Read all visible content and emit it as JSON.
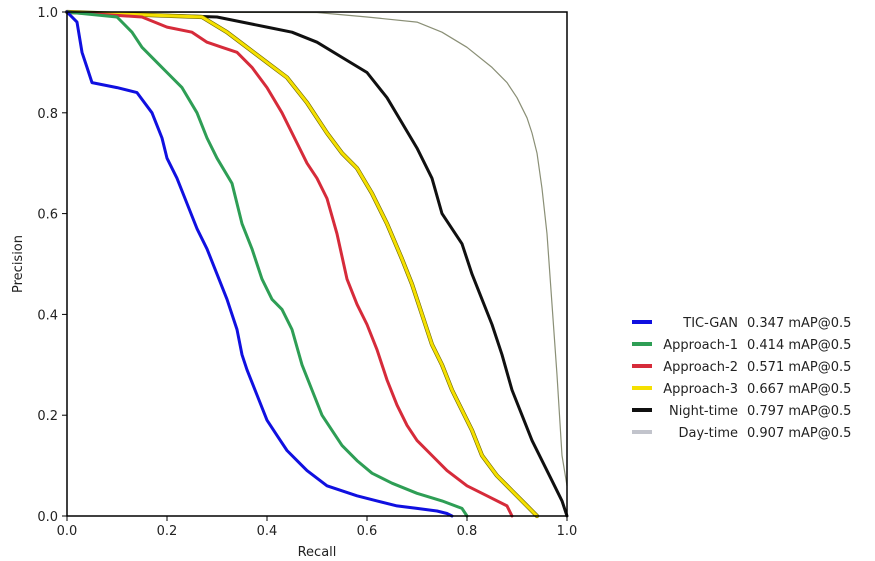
{
  "chart_data": {
    "type": "line",
    "xlabel": "Recall",
    "ylabel": "Precision",
    "xlim": [
      0.0,
      1.0
    ],
    "ylim": [
      0.0,
      1.0
    ],
    "x_ticks": [
      "0.0",
      "0.2",
      "0.4",
      "0.6",
      "0.8",
      "1.0"
    ],
    "y_ticks": [
      "0.0",
      "0.2",
      "0.4",
      "0.6",
      "0.8",
      "1.0"
    ],
    "grid": false,
    "legend_position": "right",
    "series": [
      {
        "name": "TIC-GAN",
        "score": "0.347 mAP@0.5",
        "color": "#1010e0",
        "x": [
          0.0,
          0.02,
          0.03,
          0.04,
          0.05,
          0.1,
          0.14,
          0.17,
          0.19,
          0.2,
          0.22,
          0.24,
          0.26,
          0.28,
          0.3,
          0.32,
          0.34,
          0.35,
          0.36,
          0.38,
          0.4,
          0.42,
          0.44,
          0.46,
          0.48,
          0.5,
          0.52,
          0.55,
          0.58,
          0.62,
          0.66,
          0.7,
          0.74,
          0.76,
          0.77
        ],
        "y": [
          1.0,
          0.98,
          0.92,
          0.89,
          0.86,
          0.85,
          0.84,
          0.8,
          0.75,
          0.71,
          0.67,
          0.62,
          0.57,
          0.53,
          0.48,
          0.43,
          0.37,
          0.32,
          0.29,
          0.24,
          0.19,
          0.16,
          0.13,
          0.11,
          0.09,
          0.075,
          0.06,
          0.05,
          0.04,
          0.03,
          0.02,
          0.015,
          0.01,
          0.005,
          0.0
        ]
      },
      {
        "name": "Approach-1",
        "score": "0.414 mAP@0.5",
        "color": "#2e9e55",
        "x": [
          0.0,
          0.1,
          0.13,
          0.15,
          0.18,
          0.2,
          0.23,
          0.26,
          0.28,
          0.3,
          0.33,
          0.35,
          0.37,
          0.39,
          0.41,
          0.43,
          0.45,
          0.47,
          0.49,
          0.51,
          0.53,
          0.55,
          0.58,
          0.61,
          0.65,
          0.7,
          0.75,
          0.79,
          0.8
        ],
        "y": [
          1.0,
          0.99,
          0.96,
          0.93,
          0.9,
          0.88,
          0.85,
          0.8,
          0.75,
          0.71,
          0.66,
          0.58,
          0.53,
          0.47,
          0.43,
          0.41,
          0.37,
          0.3,
          0.25,
          0.2,
          0.17,
          0.14,
          0.11,
          0.085,
          0.065,
          0.045,
          0.03,
          0.015,
          0.0
        ]
      },
      {
        "name": "Approach-2",
        "score": "0.571 mAP@0.5",
        "color": "#d62b3a",
        "x": [
          0.0,
          0.15,
          0.2,
          0.25,
          0.28,
          0.31,
          0.34,
          0.37,
          0.4,
          0.43,
          0.46,
          0.48,
          0.5,
          0.52,
          0.54,
          0.56,
          0.58,
          0.6,
          0.62,
          0.64,
          0.66,
          0.68,
          0.7,
          0.73,
          0.76,
          0.8,
          0.84,
          0.88,
          0.89
        ],
        "y": [
          1.0,
          0.99,
          0.97,
          0.96,
          0.94,
          0.93,
          0.92,
          0.89,
          0.85,
          0.8,
          0.74,
          0.7,
          0.67,
          0.63,
          0.56,
          0.47,
          0.42,
          0.38,
          0.33,
          0.27,
          0.22,
          0.18,
          0.15,
          0.12,
          0.09,
          0.06,
          0.04,
          0.02,
          0.0
        ]
      },
      {
        "name": "Approach-3",
        "score": "0.667 mAP@0.5",
        "color": "#f5e000",
        "x": [
          0.0,
          0.27,
          0.32,
          0.36,
          0.4,
          0.44,
          0.48,
          0.52,
          0.55,
          0.58,
          0.61,
          0.64,
          0.67,
          0.69,
          0.71,
          0.73,
          0.75,
          0.77,
          0.79,
          0.81,
          0.83,
          0.86,
          0.89,
          0.92,
          0.94
        ],
        "y": [
          1.0,
          0.99,
          0.96,
          0.93,
          0.9,
          0.87,
          0.82,
          0.76,
          0.72,
          0.69,
          0.64,
          0.58,
          0.51,
          0.46,
          0.4,
          0.34,
          0.3,
          0.25,
          0.21,
          0.17,
          0.12,
          0.08,
          0.05,
          0.02,
          0.0
        ]
      },
      {
        "name": "Night-time",
        "score": "0.797 mAP@0.5",
        "color": "#101010",
        "x": [
          0.0,
          0.3,
          0.4,
          0.45,
          0.5,
          0.55,
          0.6,
          0.64,
          0.67,
          0.7,
          0.73,
          0.75,
          0.77,
          0.79,
          0.81,
          0.83,
          0.85,
          0.87,
          0.89,
          0.91,
          0.93,
          0.95,
          0.97,
          0.99,
          1.0
        ],
        "y": [
          1.0,
          0.99,
          0.97,
          0.96,
          0.94,
          0.91,
          0.88,
          0.83,
          0.78,
          0.73,
          0.67,
          0.6,
          0.57,
          0.54,
          0.48,
          0.43,
          0.38,
          0.32,
          0.25,
          0.2,
          0.15,
          0.11,
          0.07,
          0.03,
          0.0
        ]
      },
      {
        "name": "Day-time",
        "score": "0.907 mAP@0.5",
        "color": "#8a8f76",
        "x": [
          0.0,
          0.5,
          0.6,
          0.7,
          0.75,
          0.8,
          0.85,
          0.88,
          0.9,
          0.92,
          0.93,
          0.94,
          0.95,
          0.96,
          0.97,
          0.98,
          0.99,
          1.0
        ],
        "y": [
          1.0,
          0.999,
          0.99,
          0.98,
          0.96,
          0.93,
          0.89,
          0.86,
          0.83,
          0.79,
          0.76,
          0.72,
          0.65,
          0.56,
          0.42,
          0.28,
          0.12,
          0.06
        ]
      }
    ]
  }
}
